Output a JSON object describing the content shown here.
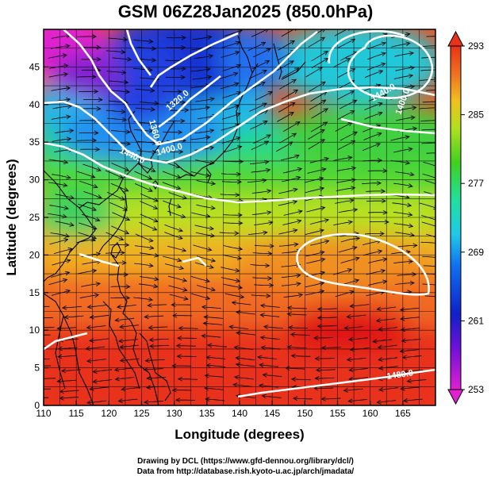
{
  "title": "GSM 06Z28Jan2025 (850.0hPa)",
  "x_axis": {
    "label": "Longitude (degrees)",
    "ticks": [
      "110",
      "115",
      "120",
      "125",
      "130",
      "135",
      "140",
      "145",
      "150",
      "155",
      "160",
      "165"
    ],
    "min": 110,
    "max": 170
  },
  "y_axis": {
    "label": "Latitude (degrees)",
    "ticks": [
      "0",
      "5",
      "10",
      "15",
      "20",
      "25",
      "30",
      "35",
      "40",
      "45"
    ],
    "min": 0,
    "max": 50
  },
  "colorbar": {
    "ticks": [
      "293",
      "285",
      "277",
      "269",
      "261",
      "253"
    ],
    "min": 253,
    "max": 293
  },
  "contour_labels": [
    "1360.0",
    "1320.0",
    "1400.0",
    "1440.0",
    "1440.0",
    "1400.0",
    "1480.0"
  ],
  "credits": {
    "line1": "Drawing by DCL (https://www.gfd-dennou.org/library/dcl/)",
    "line2": "Data from http://database.rish.kyoto-u.ac.jp/arch/jmadata/"
  },
  "colors": {
    "warm": "#e8321a",
    "cold": "#1020c8",
    "magenta": "#e020d0",
    "green": "#40d020"
  }
}
